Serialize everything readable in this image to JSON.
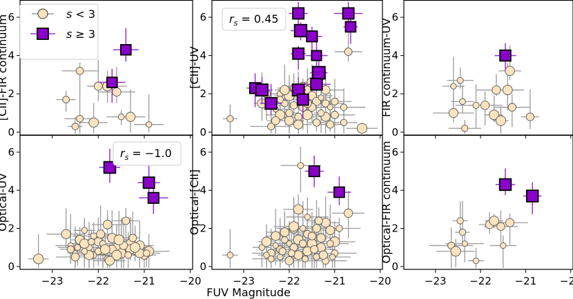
{
  "figure": {
    "xlabel": "FUV Magnitude",
    "legend": [
      {
        "label": "s < 3",
        "marker": "circle",
        "color": "#fde4bf"
      },
      {
        "label": "s ≥ 3",
        "marker": "square",
        "color": "#8a00c8"
      }
    ],
    "colors": {
      "circle_fill": "#fde4bf",
      "square_fill": "#8a00c8",
      "circle_err": "#9a9a9a",
      "square_err": "#9a30d0",
      "edge": "#000000"
    }
  },
  "chart_data": [
    {
      "id": "cii-fir",
      "type": "scatter",
      "ylabel": "[CII]-FIR continuum",
      "annotation": "",
      "xlim": [
        -23.7,
        -19.95
      ],
      "ylim": [
        -0.15,
        6.9
      ],
      "xticks": [
        -23,
        -22,
        -21,
        -20
      ],
      "yticks": [
        0,
        2,
        4,
        6
      ],
      "show_xticklabels": false,
      "small": [
        [
          -22.7,
          1.7
        ],
        [
          -22.4,
          3.2
        ],
        [
          -22.4,
          0.7
        ],
        [
          -22.1,
          0.5
        ],
        [
          -22.0,
          2.4
        ],
        [
          -21.8,
          2.4
        ],
        [
          -21.6,
          2.1
        ],
        [
          -21.5,
          0.8
        ],
        [
          -21.3,
          0.8
        ],
        [
          -20.9,
          0.4
        ],
        [
          -22.5,
          0.3
        ]
      ],
      "large": [
        [
          -21.4,
          4.3
        ],
        [
          -21.7,
          2.6
        ]
      ]
    },
    {
      "id": "cii-uv",
      "type": "scatter",
      "ylabel": "[CII]-UV",
      "annotation": "r_s = 0.45",
      "xlim": [
        -23.7,
        -19.95
      ],
      "ylim": [
        -0.15,
        6.9
      ],
      "xticks": [
        -23,
        -22,
        -21,
        -20
      ],
      "yticks": [
        0,
        2,
        4,
        6
      ],
      "show_xticklabels": false,
      "small": [
        [
          -23.3,
          0.7
        ],
        [
          -22.6,
          1.5
        ],
        [
          -22.5,
          2.0
        ],
        [
          -22.3,
          1.2
        ],
        [
          -22.2,
          2.0
        ],
        [
          -22.1,
          1.5
        ],
        [
          -22.0,
          1.9
        ],
        [
          -21.9,
          1.4
        ],
        [
          -21.8,
          2.1
        ],
        [
          -21.7,
          2.4
        ],
        [
          -21.6,
          2.2
        ],
        [
          -21.5,
          1.9
        ],
        [
          -21.4,
          1.6
        ],
        [
          -21.3,
          1.8
        ],
        [
          -21.2,
          1.5
        ],
        [
          -21.0,
          1.6
        ],
        [
          -20.8,
          1.3
        ],
        [
          -20.7,
          4.2
        ],
        [
          -22.4,
          0.3
        ],
        [
          -22.2,
          0.9
        ],
        [
          -22.0,
          0.6
        ],
        [
          -21.8,
          0.8
        ],
        [
          -21.6,
          0.9
        ],
        [
          -21.4,
          0.5
        ],
        [
          -21.2,
          0.8
        ],
        [
          -21.0,
          0.9
        ],
        [
          -20.4,
          0.2
        ],
        [
          -22.0,
          1.0
        ],
        [
          -21.7,
          1.3
        ],
        [
          -21.5,
          1.3
        ],
        [
          -21.3,
          1.0
        ],
        [
          -21.9,
          2.3
        ],
        [
          -21.5,
          2.6
        ],
        [
          -21.1,
          1.3
        ],
        [
          -22.1,
          2.2
        ],
        [
          -21.7,
          1.8
        ],
        [
          -21.2,
          2.2
        ],
        [
          -22.2,
          1.7
        ],
        [
          -21.6,
          1.5
        ],
        [
          -20.8,
          0.5
        ],
        [
          -21.8,
          0.4
        ],
        [
          -21.1,
          0.4
        ],
        [
          -22.3,
          0.6
        ]
      ],
      "large": [
        [
          -21.8,
          6.2
        ],
        [
          -20.7,
          6.2
        ],
        [
          -21.75,
          5.3
        ],
        [
          -21.5,
          5.0
        ],
        [
          -20.65,
          5.5
        ],
        [
          -21.8,
          4.1
        ],
        [
          -21.4,
          4.0
        ],
        [
          -21.35,
          3.1
        ],
        [
          -22.75,
          2.3
        ],
        [
          -22.6,
          2.2
        ],
        [
          -21.8,
          2.2
        ],
        [
          -21.4,
          2.5
        ],
        [
          -22.4,
          1.5
        ],
        [
          -21.7,
          1.7
        ]
      ]
    },
    {
      "id": "fir-uv",
      "type": "scatter",
      "ylabel": "FIR continuum-UV",
      "annotation": "",
      "xlim": [
        -23.7,
        -19.95
      ],
      "ylim": [
        -0.15,
        6.9
      ],
      "xticks": [
        -23,
        -22,
        -21,
        -20
      ],
      "yticks": [
        0,
        2,
        4,
        6
      ],
      "show_xticklabels": false,
      "small": [
        [
          -22.6,
          2.4
        ],
        [
          -22.45,
          2.7
        ],
        [
          -22.4,
          1.6
        ],
        [
          -22.6,
          1.0
        ],
        [
          -22.35,
          0.2
        ],
        [
          -22.1,
          1.4
        ],
        [
          -21.9,
          1.4
        ],
        [
          -21.7,
          0.9
        ],
        [
          -21.65,
          2.2
        ],
        [
          -21.55,
          0.6
        ],
        [
          -21.35,
          3.2
        ],
        [
          -21.3,
          1.3
        ],
        [
          -21.4,
          2.2
        ],
        [
          -20.9,
          0.8
        ]
      ],
      "large": [
        [
          -21.45,
          4.0
        ]
      ]
    },
    {
      "id": "opt-uv",
      "type": "scatter",
      "ylabel": "Optical-UV",
      "annotation": "r_s = -1.0",
      "xlim": [
        -23.7,
        -19.95
      ],
      "ylim": [
        -0.15,
        6.9
      ],
      "xticks": [
        -23,
        -22,
        -21,
        -20
      ],
      "yticks": [
        0,
        2,
        4,
        6
      ],
      "show_xticklabels": true,
      "small": [
        [
          -23.3,
          0.4
        ],
        [
          -22.7,
          1.7
        ],
        [
          -22.6,
          1.1
        ],
        [
          -22.5,
          0.7
        ],
        [
          -22.4,
          1.4
        ],
        [
          -22.3,
          1.9
        ],
        [
          -22.2,
          1.0
        ],
        [
          -22.1,
          0.6
        ],
        [
          -22.0,
          1.3
        ],
        [
          -21.9,
          0.8
        ],
        [
          -21.8,
          2.2
        ],
        [
          -21.7,
          1.5
        ],
        [
          -21.6,
          1.0
        ],
        [
          -21.5,
          0.7
        ],
        [
          -21.4,
          2.4
        ],
        [
          -21.3,
          1.2
        ],
        [
          -21.2,
          0.8
        ],
        [
          -21.1,
          1.1
        ],
        [
          -21.0,
          0.6
        ],
        [
          -20.9,
          0.8
        ],
        [
          -22.5,
          0.5
        ],
        [
          -22.3,
          1.2
        ],
        [
          -22.1,
          1.6
        ],
        [
          -21.9,
          1.2
        ],
        [
          -21.7,
          0.9
        ],
        [
          -21.5,
          1.3
        ],
        [
          -21.3,
          0.9
        ],
        [
          -21.1,
          0.7
        ],
        [
          -22.2,
          0.6
        ],
        [
          -21.8,
          0.4
        ],
        [
          -22.6,
          0.9
        ],
        [
          -21.95,
          1.7
        ],
        [
          -21.45,
          1.1
        ],
        [
          -21.25,
          1.5
        ],
        [
          -22.45,
          1.0
        ],
        [
          -22.0,
          0.8
        ],
        [
          -21.6,
          0.6
        ],
        [
          -21.2,
          1.0
        ],
        [
          -22.3,
          0.8
        ],
        [
          -21.85,
          0.9
        ],
        [
          -21.35,
          0.6
        ],
        [
          -20.95,
          0.7
        ],
        [
          -21.75,
          0.3
        ],
        [
          -22.15,
          1.3
        ],
        [
          -21.55,
          1.4
        ]
      ],
      "large": [
        [
          -21.75,
          5.2
        ],
        [
          -20.9,
          4.4
        ],
        [
          -20.8,
          3.6
        ]
      ]
    },
    {
      "id": "opt-cii",
      "type": "scatter",
      "ylabel": "Optical-[CII]",
      "annotation": "",
      "xlim": [
        -23.7,
        -19.95
      ],
      "ylim": [
        -0.15,
        6.9
      ],
      "xticks": [
        -23,
        -22,
        -21,
        -20
      ],
      "yticks": [
        0,
        2,
        4,
        6
      ],
      "show_xticklabels": true,
      "small": [
        [
          -23.3,
          0.6
        ],
        [
          -22.6,
          1.0
        ],
        [
          -22.5,
          1.3
        ],
        [
          -22.4,
          0.7
        ],
        [
          -22.3,
          1.6
        ],
        [
          -22.2,
          0.9
        ],
        [
          -22.1,
          1.8
        ],
        [
          -22.0,
          1.2
        ],
        [
          -21.9,
          2.0
        ],
        [
          -21.8,
          1.4
        ],
        [
          -21.75,
          5.3
        ],
        [
          -21.8,
          3.0
        ],
        [
          -21.7,
          2.0
        ],
        [
          -21.6,
          1.7
        ],
        [
          -21.5,
          1.2
        ],
        [
          -21.4,
          2.0
        ],
        [
          -21.3,
          1.5
        ],
        [
          -21.2,
          2.3
        ],
        [
          -21.1,
          1.9
        ],
        [
          -21.0,
          1.3
        ],
        [
          -20.9,
          2.0
        ],
        [
          -20.7,
          2.8
        ],
        [
          -22.4,
          0.4
        ],
        [
          -22.2,
          0.5
        ],
        [
          -22.0,
          0.3
        ],
        [
          -21.8,
          0.6
        ],
        [
          -21.6,
          0.8
        ],
        [
          -21.4,
          0.5
        ],
        [
          -21.2,
          0.3
        ],
        [
          -21.0,
          0.7
        ],
        [
          -22.3,
          1.1
        ],
        [
          -22.1,
          1.4
        ],
        [
          -21.9,
          1.0
        ],
        [
          -21.7,
          1.2
        ],
        [
          -21.5,
          1.6
        ],
        [
          -21.3,
          1.0
        ],
        [
          -21.1,
          1.2
        ],
        [
          -21.9,
          2.1
        ],
        [
          -21.6,
          2.6
        ],
        [
          -21.35,
          2.4
        ],
        [
          -22.15,
          0.8
        ],
        [
          -21.45,
          0.9
        ],
        [
          -21.25,
          0.6
        ],
        [
          -22.5,
          0.6
        ],
        [
          -21.95,
          0.7
        ],
        [
          -21.65,
          0.4
        ],
        [
          -21.05,
          0.5
        ]
      ],
      "large": [
        [
          -21.45,
          5.0
        ],
        [
          -20.9,
          3.9
        ]
      ]
    },
    {
      "id": "opt-fir",
      "type": "scatter",
      "ylabel": "Optical-FIR continuum",
      "annotation": "",
      "xlim": [
        -23.7,
        -19.95
      ],
      "ylim": [
        -0.15,
        6.9
      ],
      "xticks": [
        -23,
        -22,
        -21,
        -20
      ],
      "yticks": [
        0,
        2,
        4,
        6
      ],
      "show_xticklabels": true,
      "small": [
        [
          -22.65,
          1.1
        ],
        [
          -22.55,
          0.8
        ],
        [
          -22.45,
          2.4
        ],
        [
          -22.4,
          1.8
        ],
        [
          -22.35,
          1.2
        ],
        [
          -22.1,
          0.3
        ],
        [
          -21.8,
          2.2
        ],
        [
          -21.7,
          2.4
        ],
        [
          -21.55,
          2.1
        ],
        [
          -21.5,
          1.1
        ],
        [
          -21.35,
          2.3
        ]
      ],
      "large": [
        [
          -21.45,
          4.3
        ],
        [
          -20.85,
          3.7
        ]
      ]
    }
  ]
}
